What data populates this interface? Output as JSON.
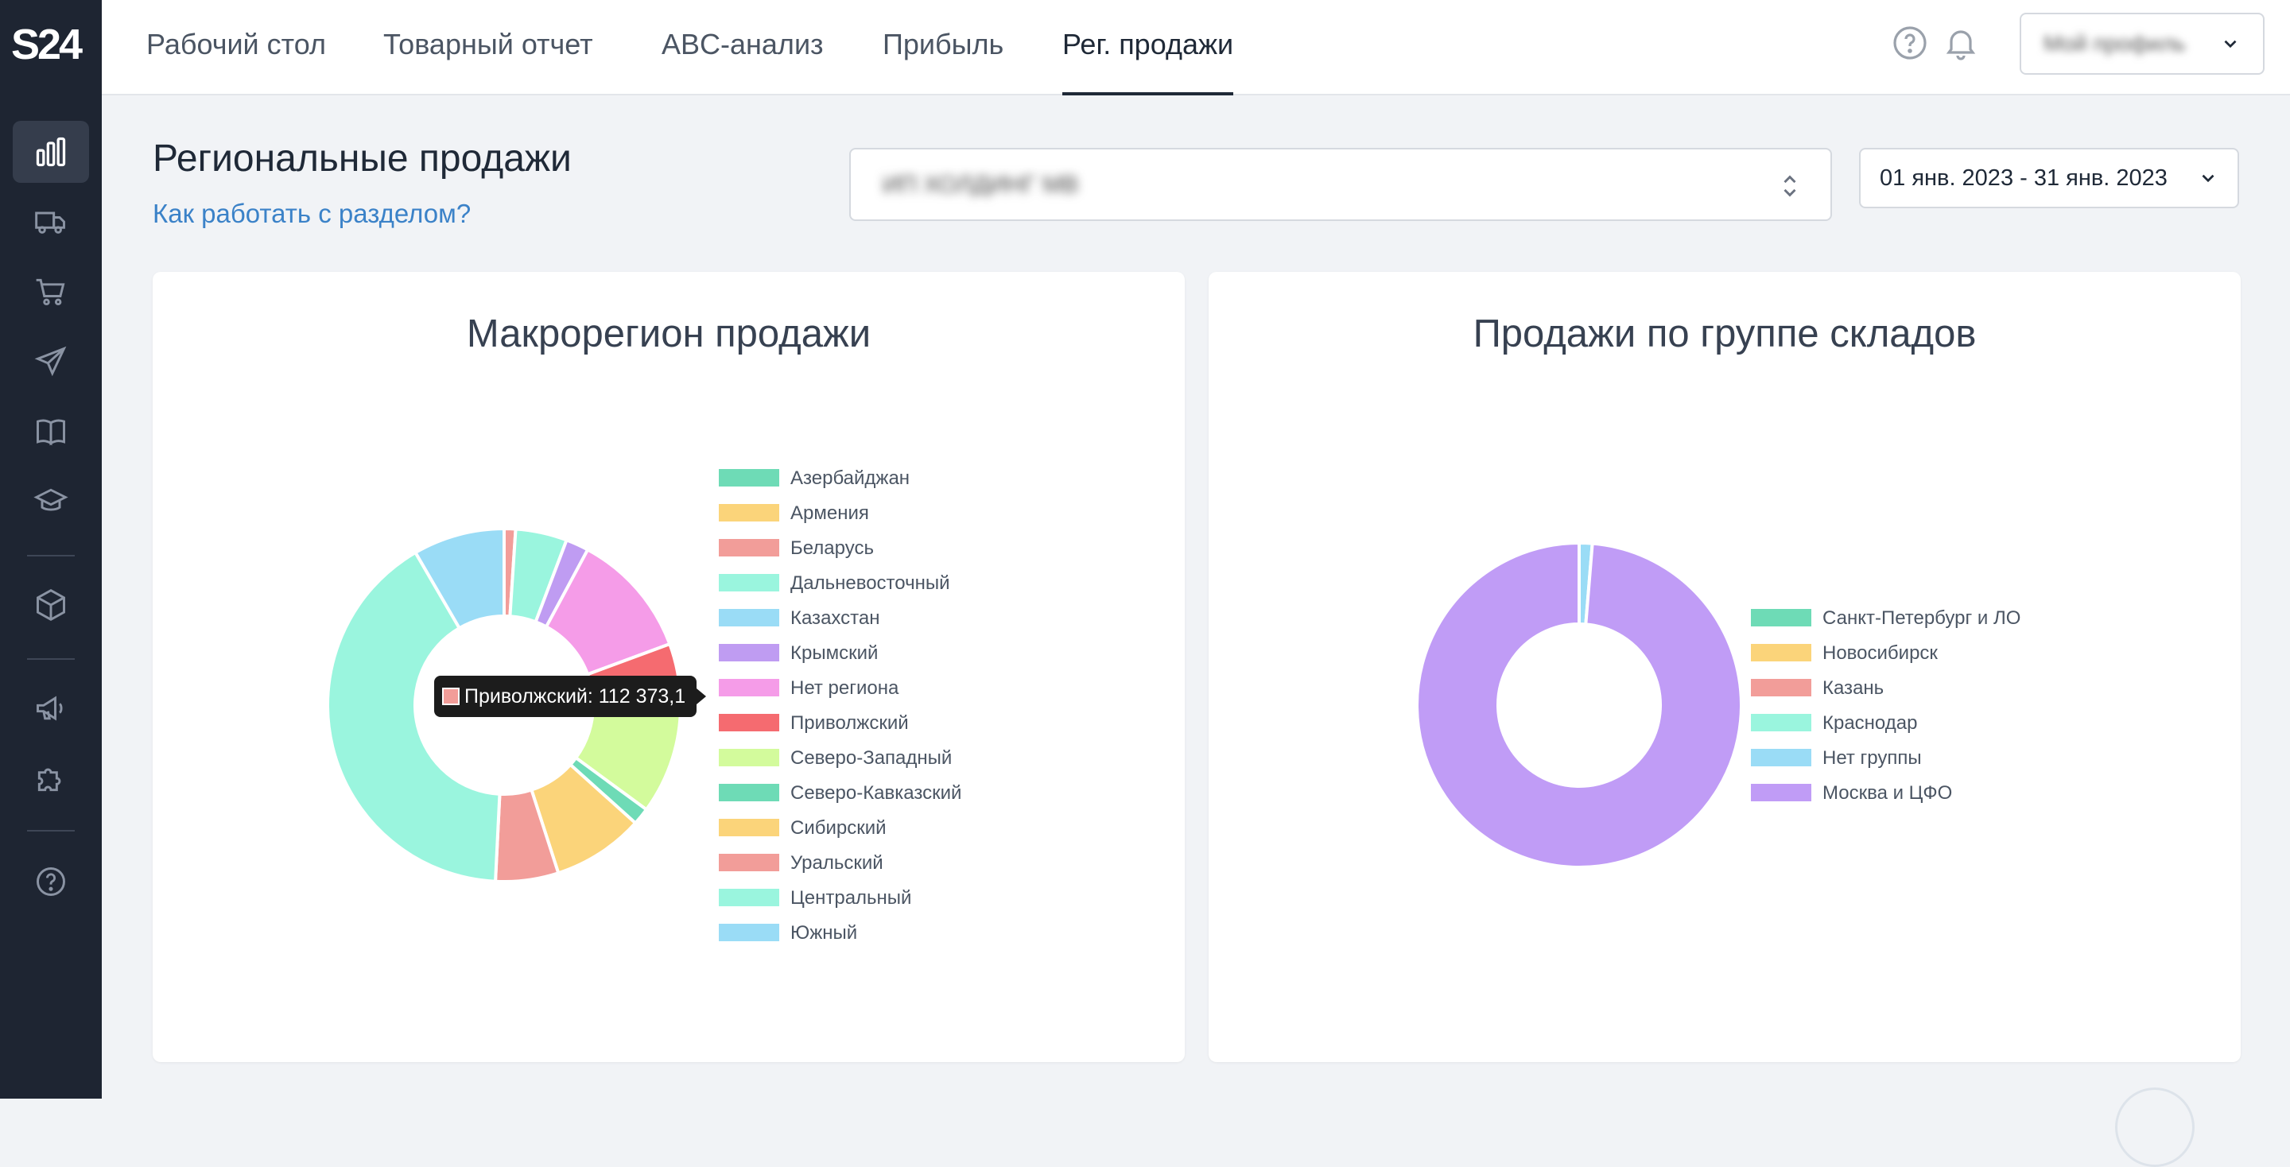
{
  "app": {
    "logo": "S24"
  },
  "nav": {
    "tabs": [
      {
        "label": "Рабочий стол"
      },
      {
        "label": "Товарный отчет"
      },
      {
        "label": "ABC-анализ"
      },
      {
        "label": "Прибыль"
      },
      {
        "label": "Рег. продажи",
        "active": true
      }
    ]
  },
  "profile": {
    "label": "Мой профиль"
  },
  "page": {
    "title": "Региональные продажи",
    "help_link": "Как работать с разделом?",
    "selector_value": "ИП ХОЛДИНГ МВ",
    "date_range": "01 янв. 2023 - 31 янв. 2023"
  },
  "sidebar": {
    "items": [
      {
        "icon": "bar-chart-icon",
        "active": true
      },
      {
        "icon": "truck-icon"
      },
      {
        "icon": "cart-icon"
      },
      {
        "icon": "paper-plane-icon"
      },
      {
        "icon": "book-icon"
      },
      {
        "icon": "graduation-cap-icon"
      },
      {
        "icon": "box-icon"
      },
      {
        "icon": "megaphone-icon"
      },
      {
        "icon": "puzzle-icon"
      },
      {
        "icon": "question-icon"
      }
    ]
  },
  "tooltip": {
    "text": "Приволжский: 112 373,1",
    "color": "#f29d99"
  },
  "chart_data": [
    {
      "type": "pie",
      "donut": true,
      "title": "Макрорегион продажи",
      "legend_position": "right",
      "slices": [
        {
          "label": "Азербайджан",
          "value": 0,
          "color": "#6edbb6"
        },
        {
          "label": "Армения",
          "value": 0,
          "color": "#fbd47a"
        },
        {
          "label": "Беларусь",
          "value": 1.0,
          "color": "#f29d99"
        },
        {
          "label": "Дальневосточный",
          "value": 4.5,
          "color": "#9af5de"
        },
        {
          "label": "Казахстан",
          "value": 0,
          "color": "#9adcf6"
        },
        {
          "label": "Крымский",
          "value": 2.0,
          "color": "#bf9cf2"
        },
        {
          "label": "Нет региона",
          "value": 11.0,
          "color": "#f59ce8"
        },
        {
          "label": "Приволжский",
          "value": 5.0,
          "color": "#f56b70"
        },
        {
          "label": "Северо-Западный",
          "value": 10.0,
          "color": "#d3fb9c"
        },
        {
          "label": "Северо-Кавказский",
          "value": 1.5,
          "color": "#6edbb6"
        },
        {
          "label": "Сибирский",
          "value": 8.0,
          "color": "#fbd47a"
        },
        {
          "label": "Уральский",
          "value": 5.5,
          "color": "#f29d99"
        },
        {
          "label": "Центральный",
          "value": 39.0,
          "color": "#9af5de"
        },
        {
          "label": "Южный",
          "value": 8.0,
          "color": "#9adcf6"
        }
      ]
    },
    {
      "type": "pie",
      "donut": true,
      "title": "Продажи по группе складов",
      "legend_position": "right",
      "slices": [
        {
          "label": "Санкт-Петербург и ЛО",
          "value": 0,
          "color": "#6edbb6"
        },
        {
          "label": "Новосибирск",
          "value": 0,
          "color": "#fbd47a"
        },
        {
          "label": "Казань",
          "value": 0,
          "color": "#f29d99"
        },
        {
          "label": "Краснодар",
          "value": 0,
          "color": "#9af5de"
        },
        {
          "label": "Нет группы",
          "value": 1.3,
          "color": "#9adcf6"
        },
        {
          "label": "Москва и ЦФО",
          "value": 98.7,
          "color": "#c09cf6"
        }
      ]
    }
  ]
}
